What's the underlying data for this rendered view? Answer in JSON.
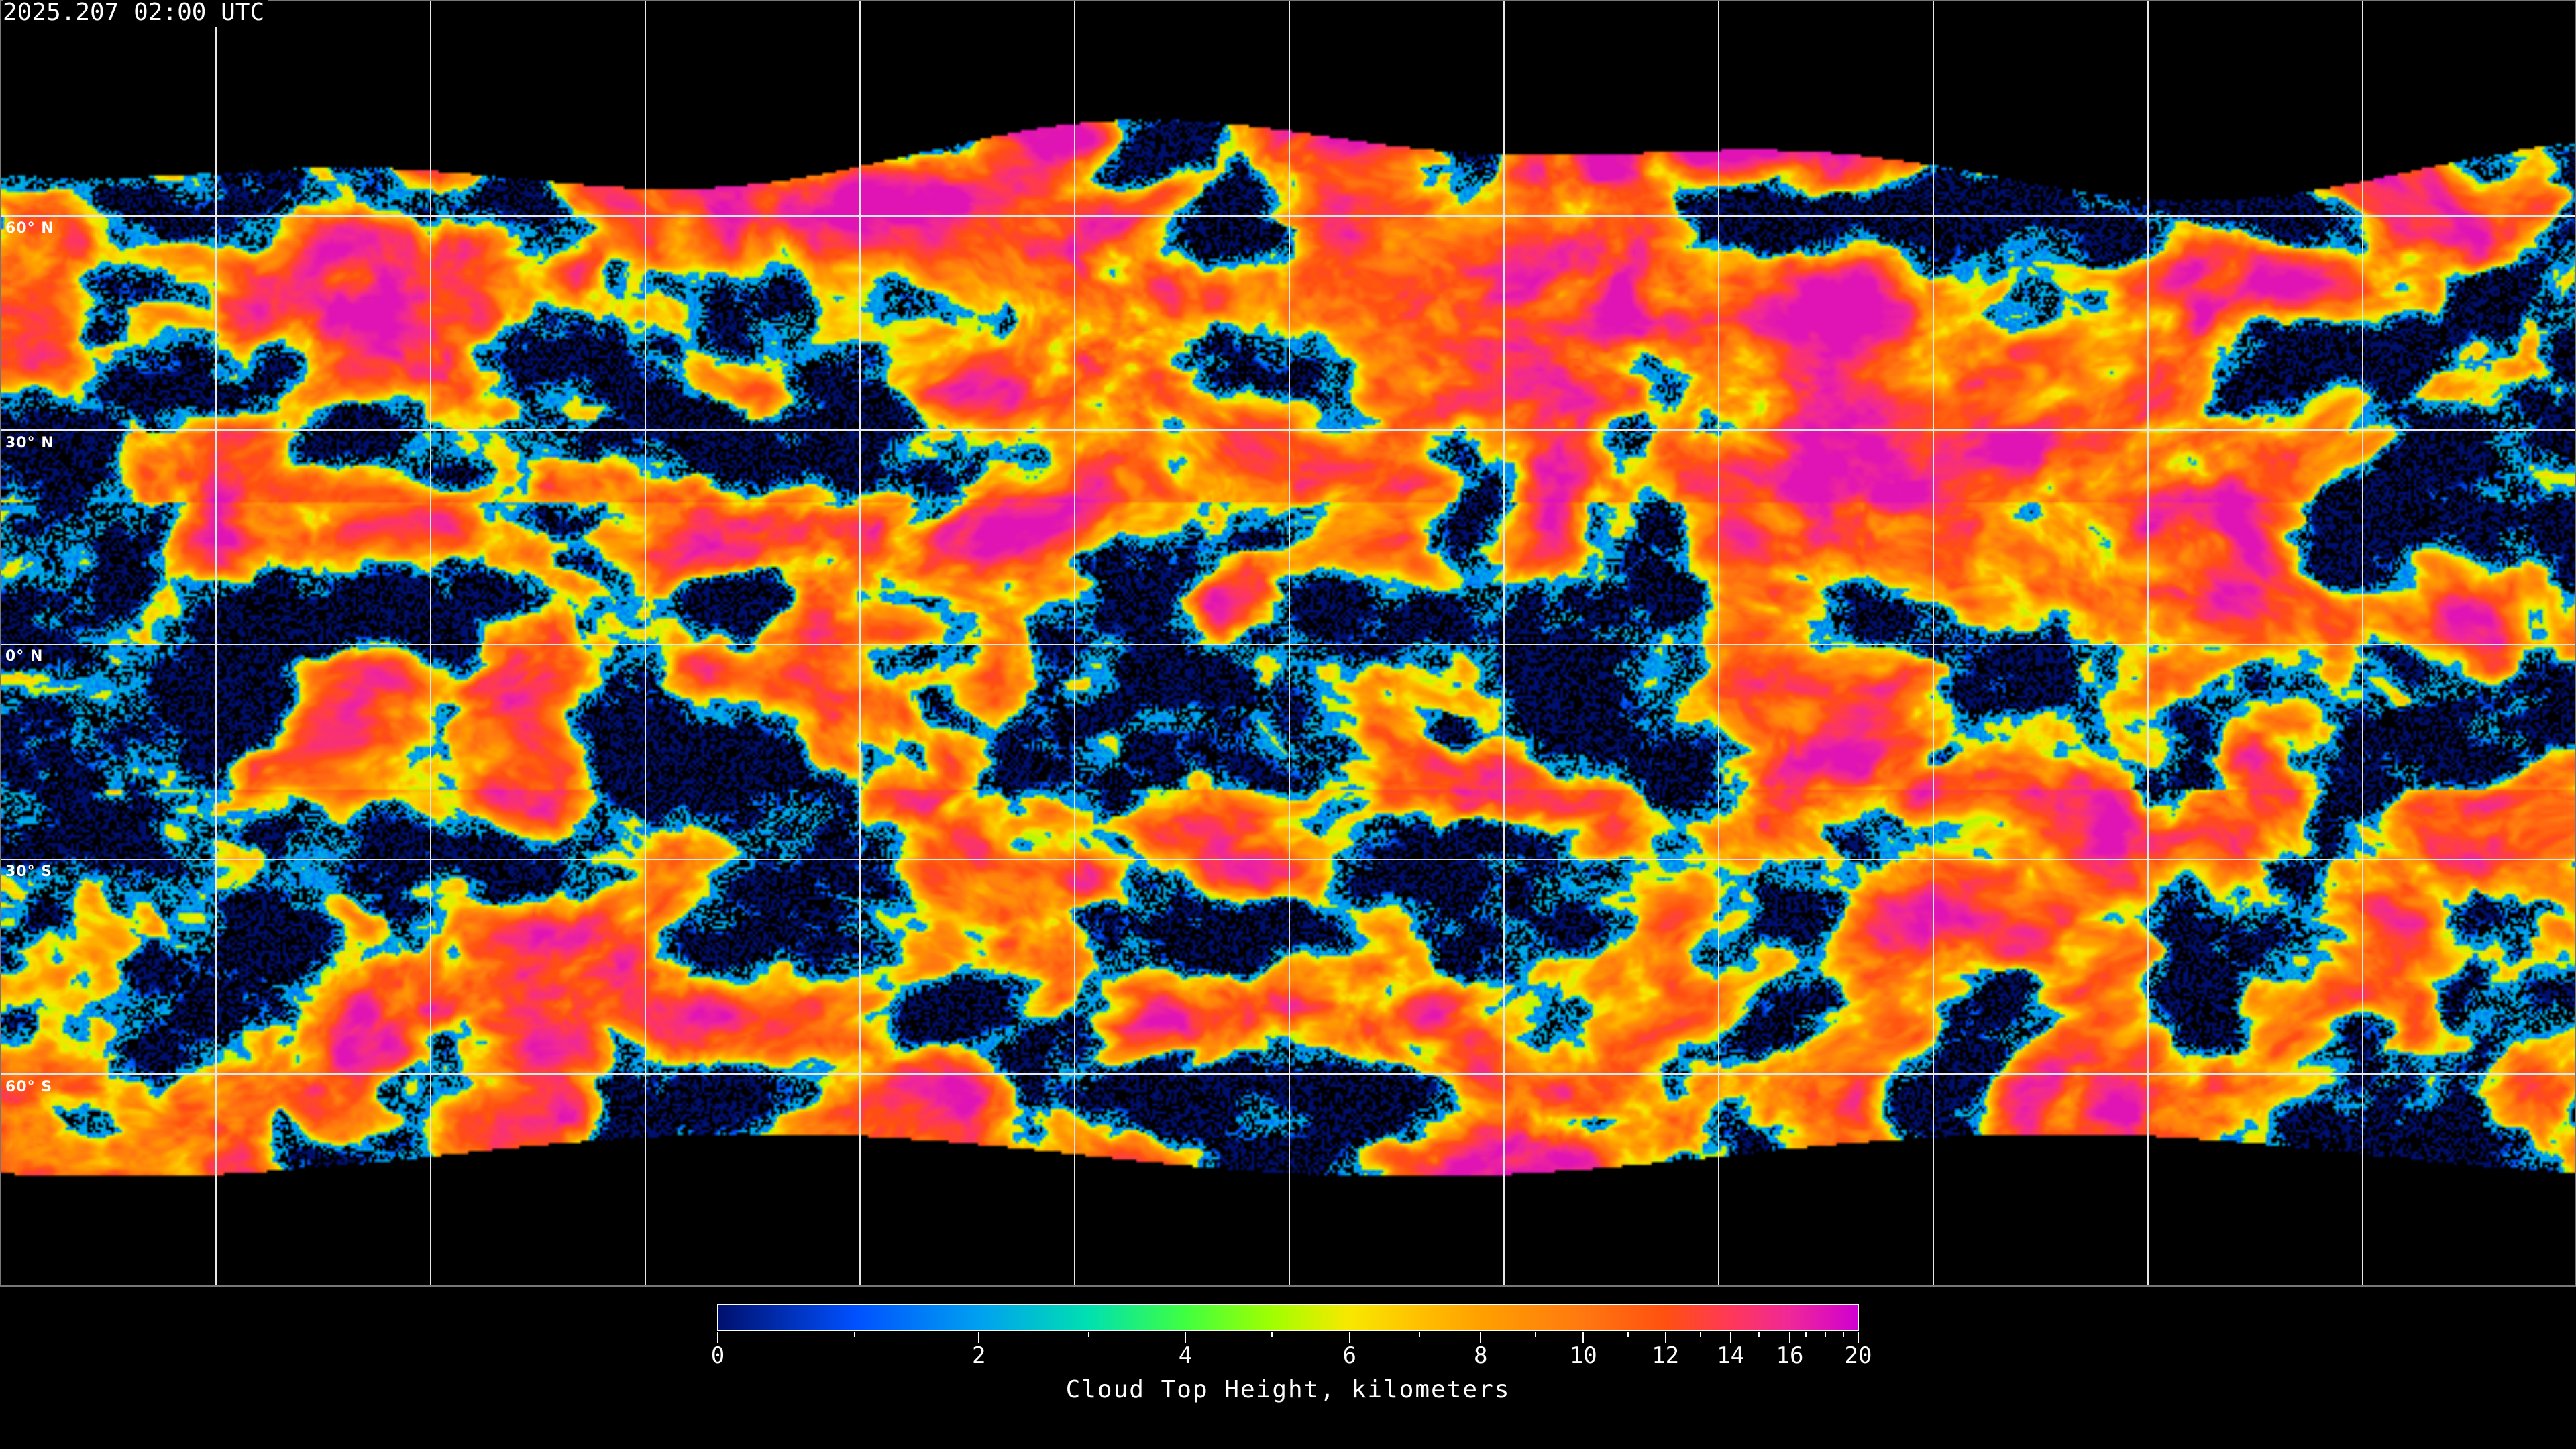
{
  "timestamp": "2025.207 02:00 UTC",
  "map": {
    "projection": "equirectangular",
    "gridlines_deg": 30,
    "latitude_labels": [
      "60° N",
      "30° N",
      "0° N",
      "30° S",
      "60° S"
    ]
  },
  "colorbar": {
    "title": "Cloud Top Height, kilometers",
    "range": [
      0,
      20
    ],
    "major_ticks": [
      "0",
      "2",
      "4",
      "6",
      "8",
      "10",
      "12",
      "14",
      "16",
      "20"
    ],
    "minor_ticks": [
      1,
      3,
      5,
      7,
      9,
      11,
      13,
      15,
      17,
      18,
      19
    ],
    "colormap": [
      {
        "value": 0,
        "color": "#00106e"
      },
      {
        "value": 1,
        "color": "#0050ff"
      },
      {
        "value": 2,
        "color": "#00a0f0"
      },
      {
        "value": 3,
        "color": "#00e0b0"
      },
      {
        "value": 4,
        "color": "#40ff40"
      },
      {
        "value": 5,
        "color": "#a0ff00"
      },
      {
        "value": 6,
        "color": "#f8e800"
      },
      {
        "value": 7,
        "color": "#ffc000"
      },
      {
        "value": 8,
        "color": "#ffa000"
      },
      {
        "value": 10,
        "color": "#ff7810"
      },
      {
        "value": 12,
        "color": "#ff5010"
      },
      {
        "value": 14,
        "color": "#ff3858"
      },
      {
        "value": 16,
        "color": "#f02898"
      },
      {
        "value": 20,
        "color": "#d000d0"
      }
    ]
  }
}
